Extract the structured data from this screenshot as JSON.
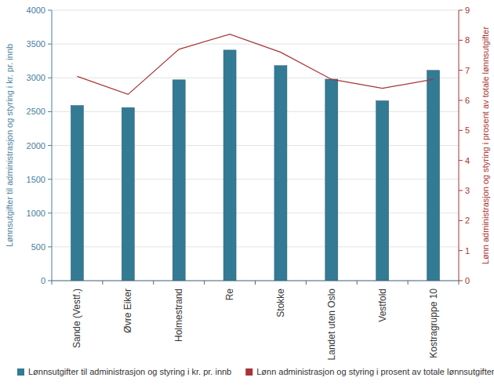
{
  "chart_data": {
    "type": "bar",
    "categories": [
      "Sande (Vestf.)",
      "Øvre Eiker",
      "Holmestrand",
      "Re",
      "Stokke",
      "Landet uten Oslo",
      "Vestfold",
      "Kostragruppe 10"
    ],
    "y_label": "Lønnsutgifter til administrasjon og styring i kr. pr. innb",
    "y2_label": "Lønn administrasjon og styring i prosent av totale lønnsutgifter",
    "series": [
      {
        "name": "Lønnsutgifter til administrasjon og styring i kr. pr. innb",
        "type": "bar",
        "color": "#337a94",
        "values": [
          2590,
          2560,
          2970,
          3410,
          3180,
          2980,
          2660,
          3110
        ]
      },
      {
        "name": "Lønn administrasjon og styring i prosent av totale lønnsutgifter",
        "type": "line",
        "color": "#a83434",
        "axis": "y2",
        "values": [
          6.8,
          6.2,
          7.7,
          8.2,
          7.6,
          6.7,
          6.4,
          6.7
        ]
      }
    ],
    "ylim": [
      0,
      4000
    ],
    "yticks": [
      0,
      500,
      1000,
      1500,
      2000,
      2500,
      3000,
      3500,
      4000
    ],
    "y2lim": [
      0,
      9
    ],
    "y2ticks": [
      0,
      1,
      2,
      3,
      4,
      5,
      6,
      7,
      8,
      9
    ],
    "grid": true,
    "legend": "bottom"
  }
}
